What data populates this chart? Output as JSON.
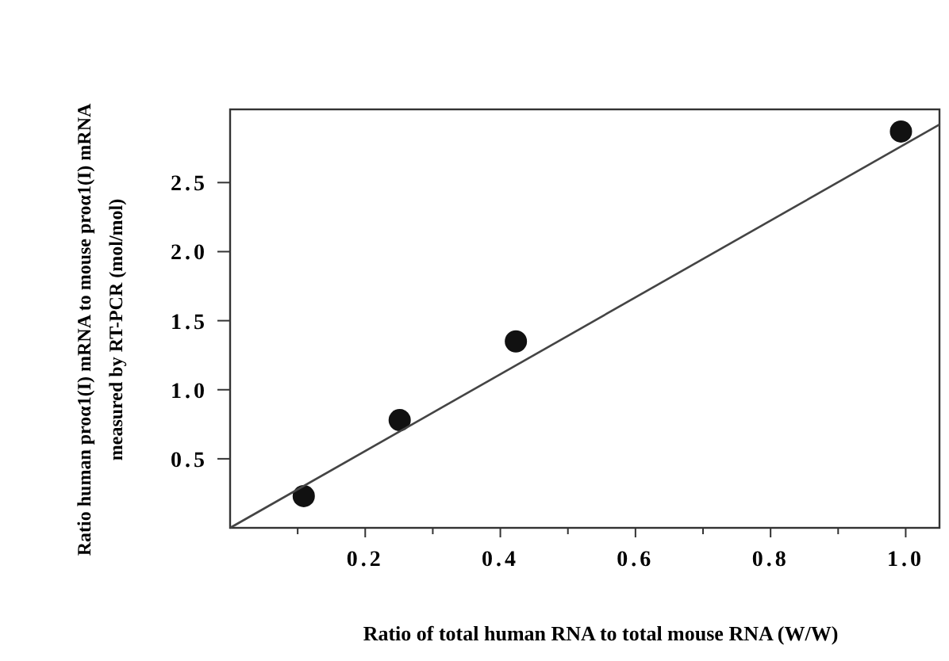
{
  "chart_data": {
    "type": "scatter",
    "xlabel": "Ratio of total human RNA to total mouse RNA (W/W)",
    "ylabel": "Ratio human proα1(I) mRNA to mouse proα1(I) mRNA\nmeasured by RT-PCR (mol/mol)",
    "xlim": [
      0,
      1.05
    ],
    "ylim": [
      0,
      3.03
    ],
    "xticks": [
      {
        "value": 0.1,
        "label": null
      },
      0.2,
      {
        "value": 0.3,
        "label": null
      },
      0.4,
      {
        "value": 0.5,
        "label": null
      },
      0.6,
      {
        "value": 0.7,
        "label": null
      },
      0.8,
      {
        "value": 0.9,
        "label": null
      },
      {
        "value": 1,
        "label": "1.0"
      }
    ],
    "yticks": [
      0.5,
      {
        "value": 1,
        "label": "1.0"
      },
      1.5,
      {
        "value": 2,
        "label": "2.0"
      },
      2.5
    ],
    "grid": false,
    "marker": "circle",
    "series": [
      {
        "color": "#111111",
        "x": [
          0.109,
          0.251,
          0.423,
          0.993
        ],
        "values": [
          0.23,
          0.78,
          1.35,
          2.87
        ]
      },
      {
        "type": "line",
        "color": "#444444",
        "line_style": "solid",
        "marker": "none",
        "x": [
          0,
          1.05
        ],
        "values": [
          0,
          2.92
        ]
      }
    ]
  }
}
